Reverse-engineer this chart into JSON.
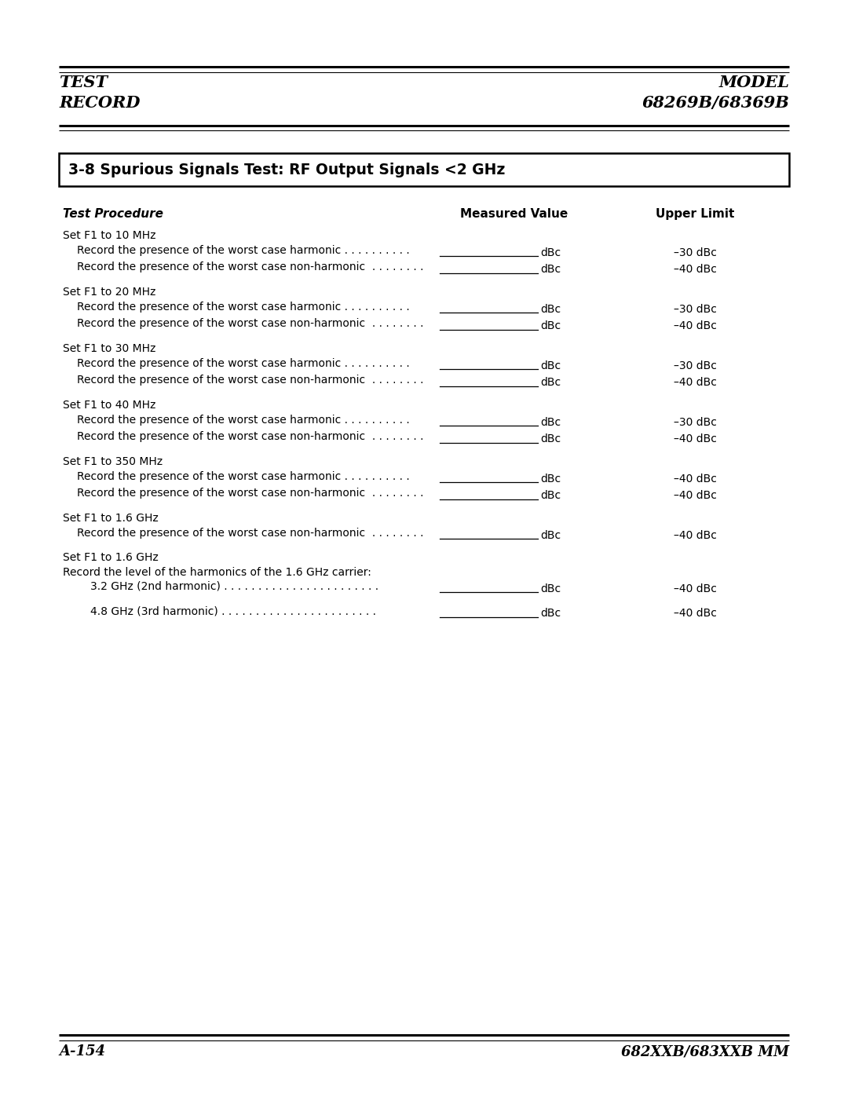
{
  "page_width": 10.8,
  "page_height": 13.97,
  "bg_color": "#ffffff",
  "header_left": "TEST\nRECORD",
  "header_right": "MODEL\n68269B/68369B",
  "footer_left": "A-154",
  "footer_right": "682XXB/683XXB MM",
  "section_title": "3-8 Spurious Signals Test: RF Output Signals <2 GHz",
  "col_headers": [
    "Test Procedure",
    "Measured Value",
    "Upper Limit"
  ],
  "rows": [
    {
      "type": "set",
      "text": "Set F1 to 10 MHz",
      "measured": false,
      "limit": ""
    },
    {
      "type": "record",
      "text": "Record the presence of the worst case harmonic . . . . . . . . . .",
      "measured": true,
      "limit": "–30 dBc"
    },
    {
      "type": "record",
      "text": "Record the presence of the worst case non-harmonic  . . . . . . . .",
      "measured": true,
      "limit": "–40 dBc"
    },
    {
      "type": "gap",
      "text": "",
      "measured": false,
      "limit": ""
    },
    {
      "type": "set",
      "text": "Set F1 to 20 MHz",
      "measured": false,
      "limit": ""
    },
    {
      "type": "record",
      "text": "Record the presence of the worst case harmonic . . . . . . . . . .",
      "measured": true,
      "limit": "–30 dBc"
    },
    {
      "type": "record",
      "text": "Record the presence of the worst case non-harmonic  . . . . . . . .",
      "measured": true,
      "limit": "–40 dBc"
    },
    {
      "type": "gap",
      "text": "",
      "measured": false,
      "limit": ""
    },
    {
      "type": "set",
      "text": "Set F1 to 30 MHz",
      "measured": false,
      "limit": ""
    },
    {
      "type": "record",
      "text": "Record the presence of the worst case harmonic . . . . . . . . . .",
      "measured": true,
      "limit": "–30 dBc"
    },
    {
      "type": "record",
      "text": "Record the presence of the worst case non-harmonic  . . . . . . . .",
      "measured": true,
      "limit": "–40 dBc"
    },
    {
      "type": "gap",
      "text": "",
      "measured": false,
      "limit": ""
    },
    {
      "type": "set",
      "text": "Set F1 to 40 MHz",
      "measured": false,
      "limit": ""
    },
    {
      "type": "record",
      "text": "Record the presence of the worst case harmonic . . . . . . . . . .",
      "measured": true,
      "limit": "–30 dBc"
    },
    {
      "type": "record",
      "text": "Record the presence of the worst case non-harmonic  . . . . . . . .",
      "measured": true,
      "limit": "–40 dBc"
    },
    {
      "type": "gap",
      "text": "",
      "measured": false,
      "limit": ""
    },
    {
      "type": "set",
      "text": "Set F1 to 350 MHz",
      "measured": false,
      "limit": ""
    },
    {
      "type": "record",
      "text": "Record the presence of the worst case harmonic . . . . . . . . . .",
      "measured": true,
      "limit": "–40 dBc"
    },
    {
      "type": "record",
      "text": "Record the presence of the worst case non-harmonic  . . . . . . . .",
      "measured": true,
      "limit": "–40 dBc"
    },
    {
      "type": "gap",
      "text": "",
      "measured": false,
      "limit": ""
    },
    {
      "type": "set",
      "text": "Set F1 to 1.6 GHz",
      "measured": false,
      "limit": ""
    },
    {
      "type": "record",
      "text": "Record the presence of the worst case non-harmonic  . . . . . . . .",
      "measured": true,
      "limit": "–40 dBc"
    },
    {
      "type": "gap",
      "text": "",
      "measured": false,
      "limit": ""
    },
    {
      "type": "set",
      "text": "Set F1 to 1.6 GHz",
      "measured": false,
      "limit": ""
    },
    {
      "type": "sub",
      "text": "Record the level of the harmonics of the 1.6 GHz carrier:",
      "measured": false,
      "limit": ""
    },
    {
      "type": "record2",
      "text": "3.2 GHz (2nd harmonic) . . . . . . . . . . . . . . . . . . . . . . .",
      "measured": true,
      "limit": "–40 dBc"
    },
    {
      "type": "gap",
      "text": "",
      "measured": false,
      "limit": ""
    },
    {
      "type": "record2",
      "text": "4.8 GHz (3rd harmonic) . . . . . . . . . . . . . . . . . . . . . . .",
      "measured": true,
      "limit": "–40 dBc"
    }
  ]
}
